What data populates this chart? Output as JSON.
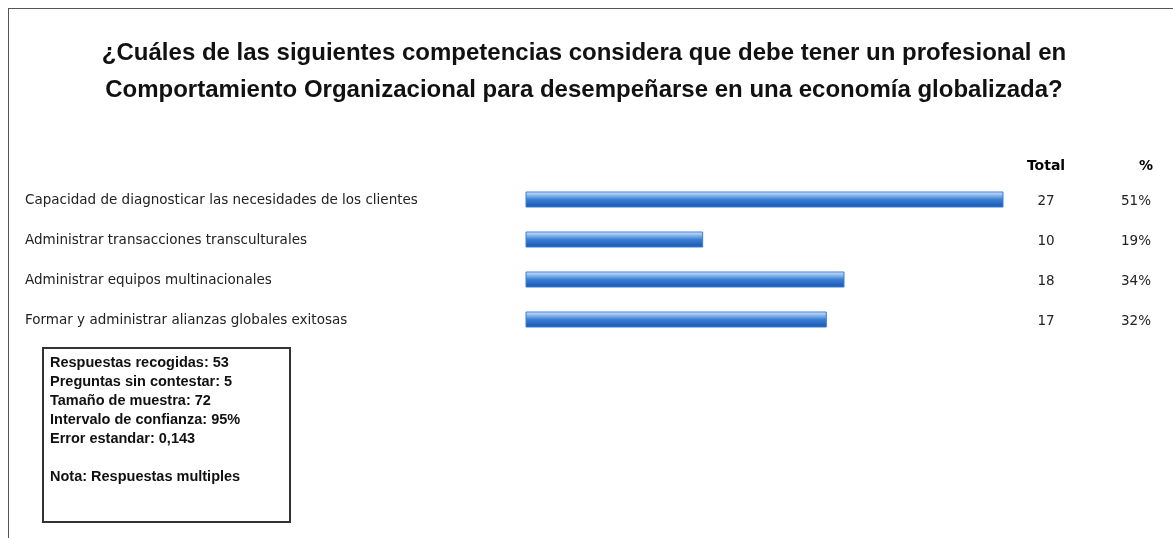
{
  "chart_data": {
    "type": "bar",
    "orientation": "horizontal",
    "title": "¿Cuáles de las siguientes competencias considera que debe tener un profesional en Comportamiento Organizacional para desempeñarse en una economía globalizada?",
    "categories": [
      "Capacidad de diagnosticar las necesidades de los clientes",
      "Administrar transacciones transculturales",
      "Administrar equipos multinacionales",
      "Formar y administrar alianzas globales exitosas"
    ],
    "values": [
      27,
      10,
      18,
      17
    ],
    "color": "#3a7fd5",
    "data_labels": true,
    "annotations": [
      "Total",
      "%",
      "51%",
      "19%",
      "34%",
      "32%",
      "Respuestas recogidas: 53",
      "Preguntas sin contestar: 5",
      "Tamaño de muestra: 72",
      "Intervalo de confianza: 95%",
      "Error estandar: 0,143",
      "Nota: Respuestas multiples"
    ]
  }
}
